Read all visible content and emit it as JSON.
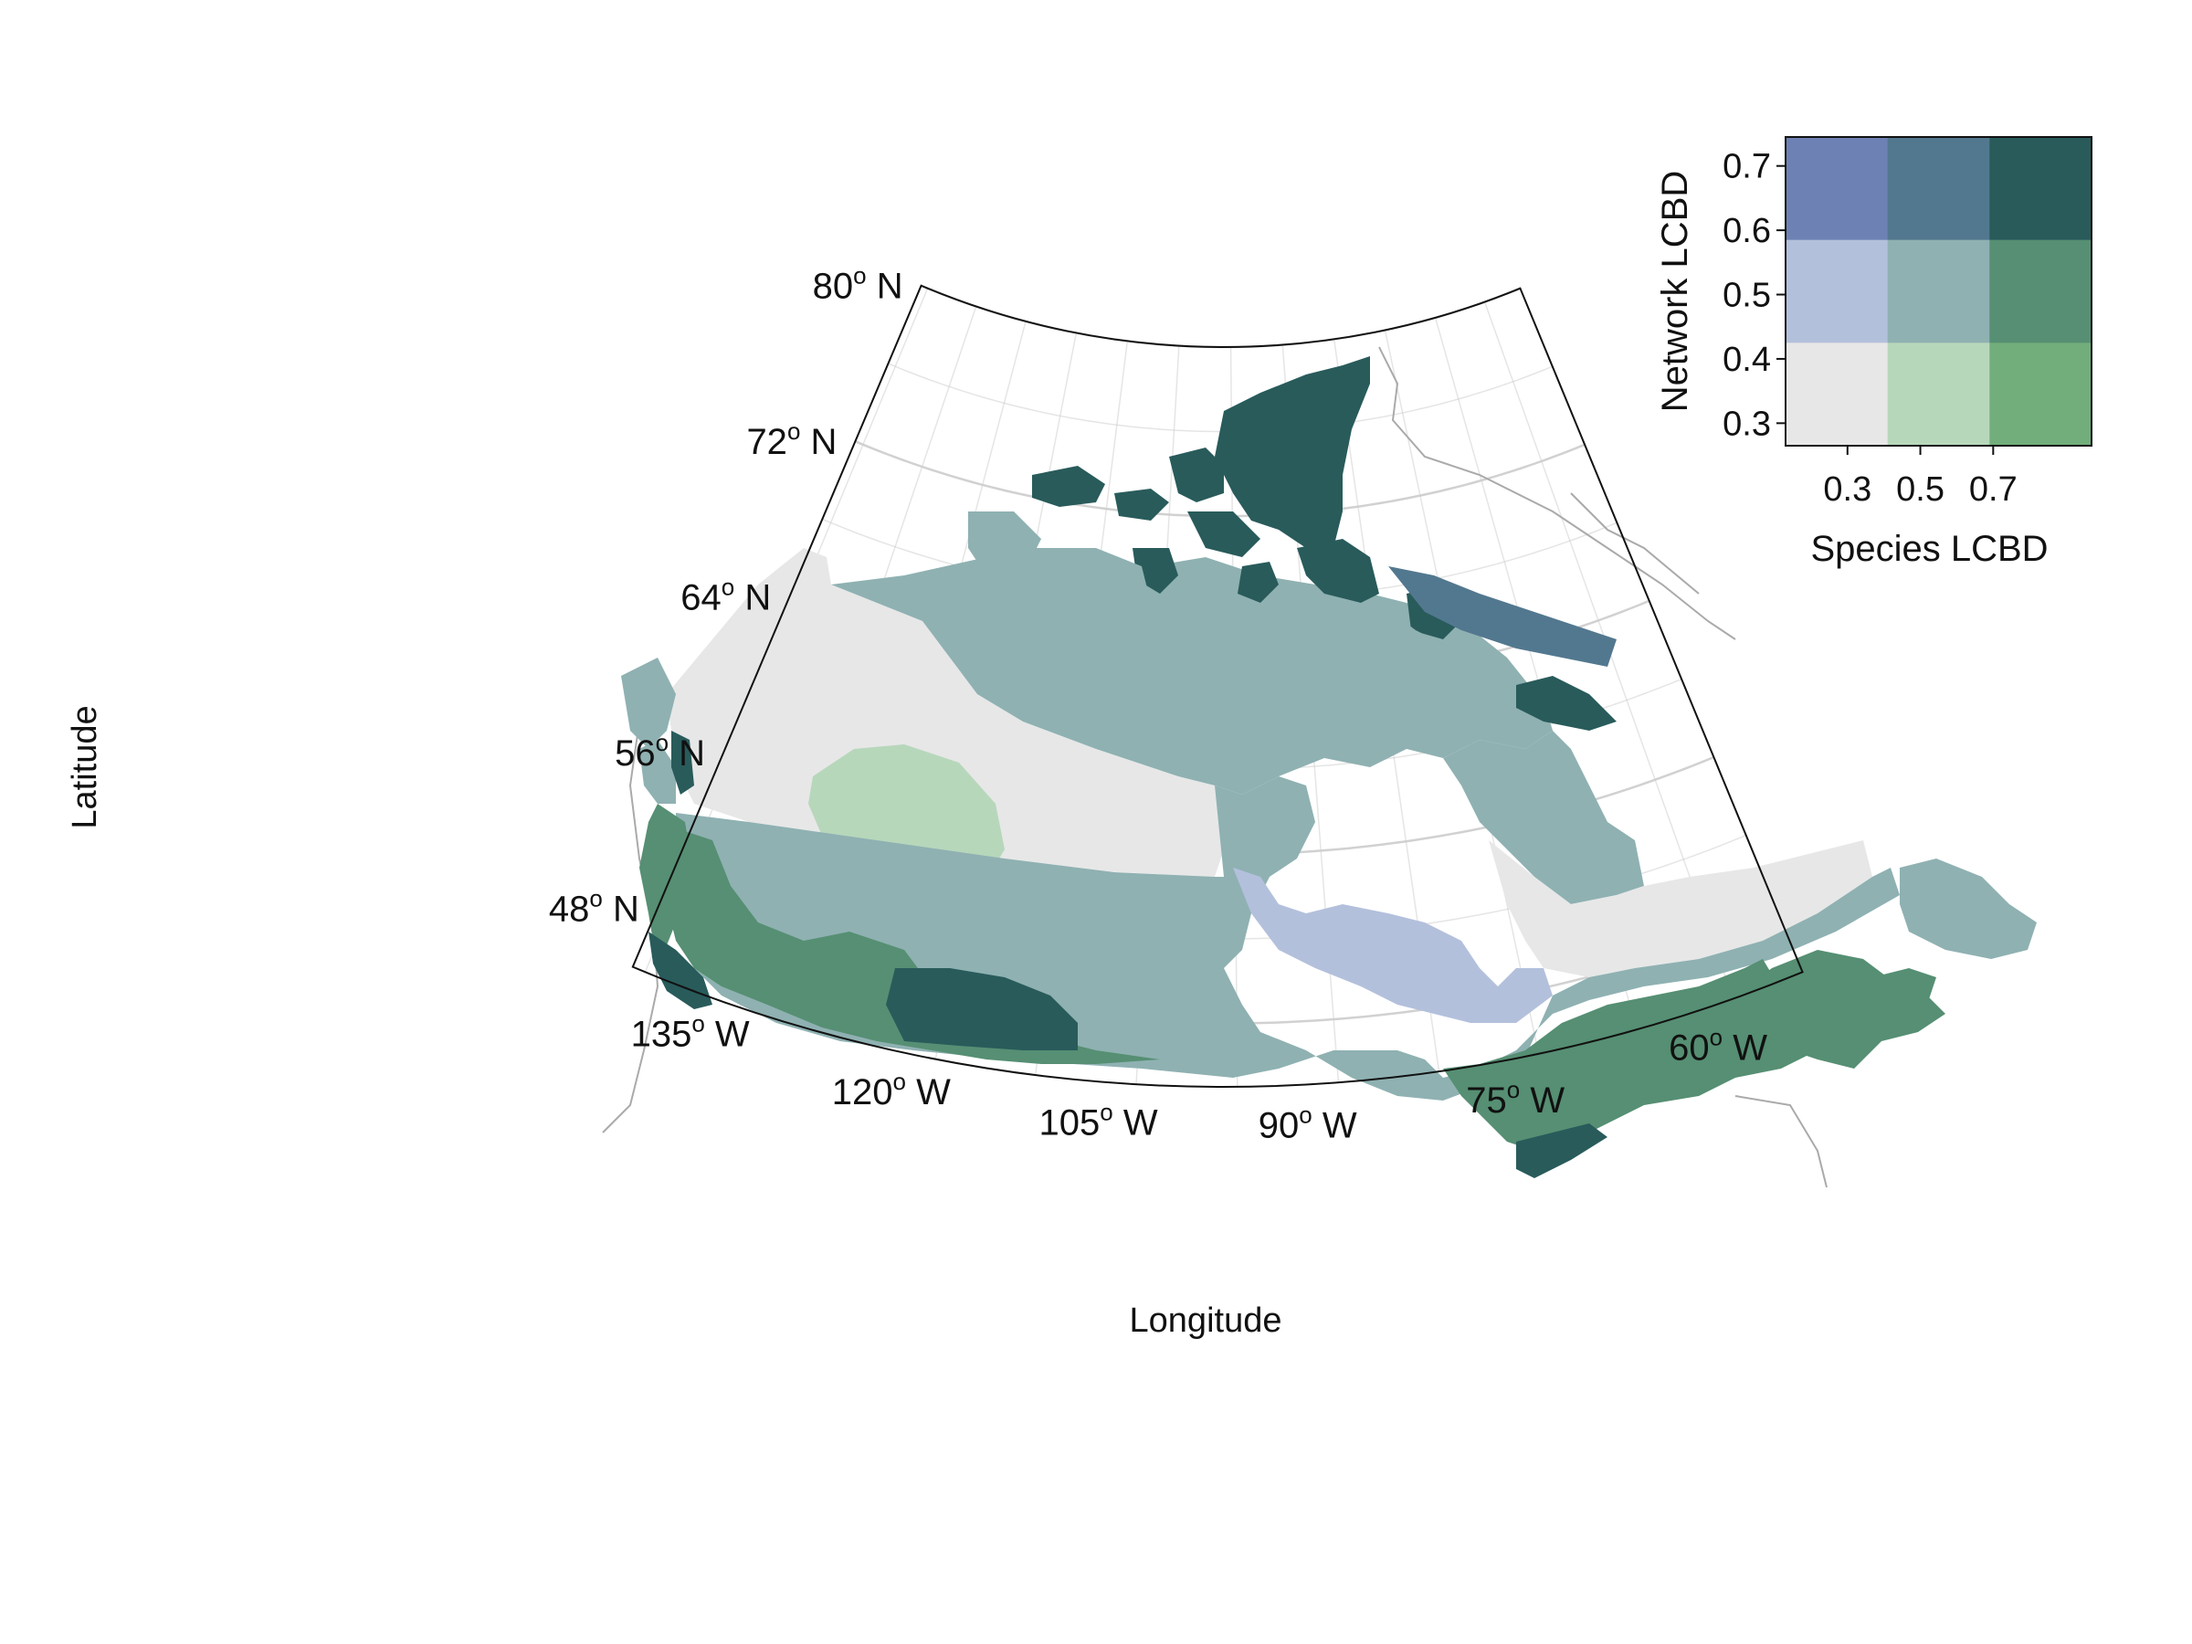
{
  "map": {
    "x_axis_title": "Longitude",
    "y_axis_title": "Latitude",
    "longitude_ticks": [
      {
        "value": -135,
        "label": "135"
      },
      {
        "value": -120,
        "label": "120"
      },
      {
        "value": -105,
        "label": "105"
      },
      {
        "value": -90,
        "label": "90"
      },
      {
        "value": -75,
        "label": "75"
      },
      {
        "value": -60,
        "label": "60"
      }
    ],
    "longitude_suffix": "W",
    "latitude_ticks": [
      {
        "value": 48,
        "label": "48"
      },
      {
        "value": 56,
        "label": "56"
      },
      {
        "value": 64,
        "label": "64"
      },
      {
        "value": 72,
        "label": "72"
      },
      {
        "value": 80,
        "label": "80"
      }
    ],
    "latitude_suffix": "N",
    "degree_symbol": "o"
  },
  "legend": {
    "x_title": "Species LCBD",
    "y_title": "Network LCBD",
    "x_ticks": [
      "0.3",
      "0.5",
      "0.7"
    ],
    "y_ticks": [
      "0.3",
      "0.4",
      "0.5",
      "0.6",
      "0.7"
    ],
    "grid_colors": [
      [
        "#6e81b4",
        "#52788f",
        "#295b5b"
      ],
      [
        "#b3c0dc",
        "#8fb1b2",
        "#568f73"
      ],
      [
        "#e7e7e7",
        "#b7d7bb",
        "#71ae7b"
      ]
    ]
  },
  "colors": {
    "coast_line": "#aaaaaa",
    "graticule": "#cccccc",
    "frame": "#111111"
  }
}
